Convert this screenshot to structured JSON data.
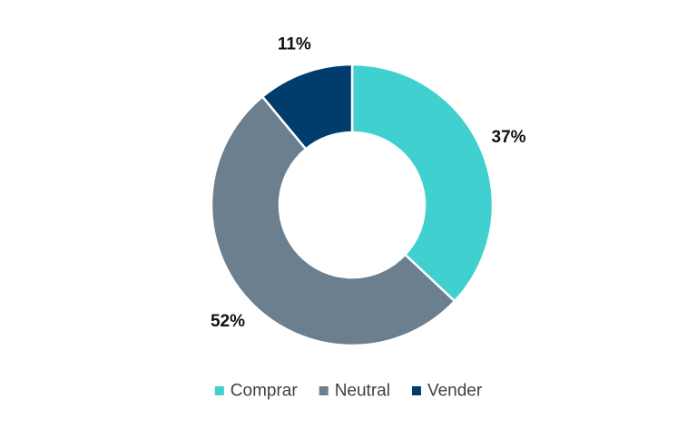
{
  "chart_data": {
    "type": "pie",
    "variant": "donut",
    "categories": [
      "Comprar",
      "Neutral",
      "Vender"
    ],
    "values": [
      37,
      52,
      11
    ],
    "value_labels": [
      "37%",
      "52%",
      "11%"
    ],
    "colors": [
      "#40d0cf",
      "#6c7f8e",
      "#003d6d"
    ],
    "start_angle_deg": 0,
    "direction": "clockwise",
    "legend": {
      "position": "bottom",
      "entries": [
        "Comprar",
        "Neutral",
        "Vender"
      ]
    },
    "title": ""
  }
}
